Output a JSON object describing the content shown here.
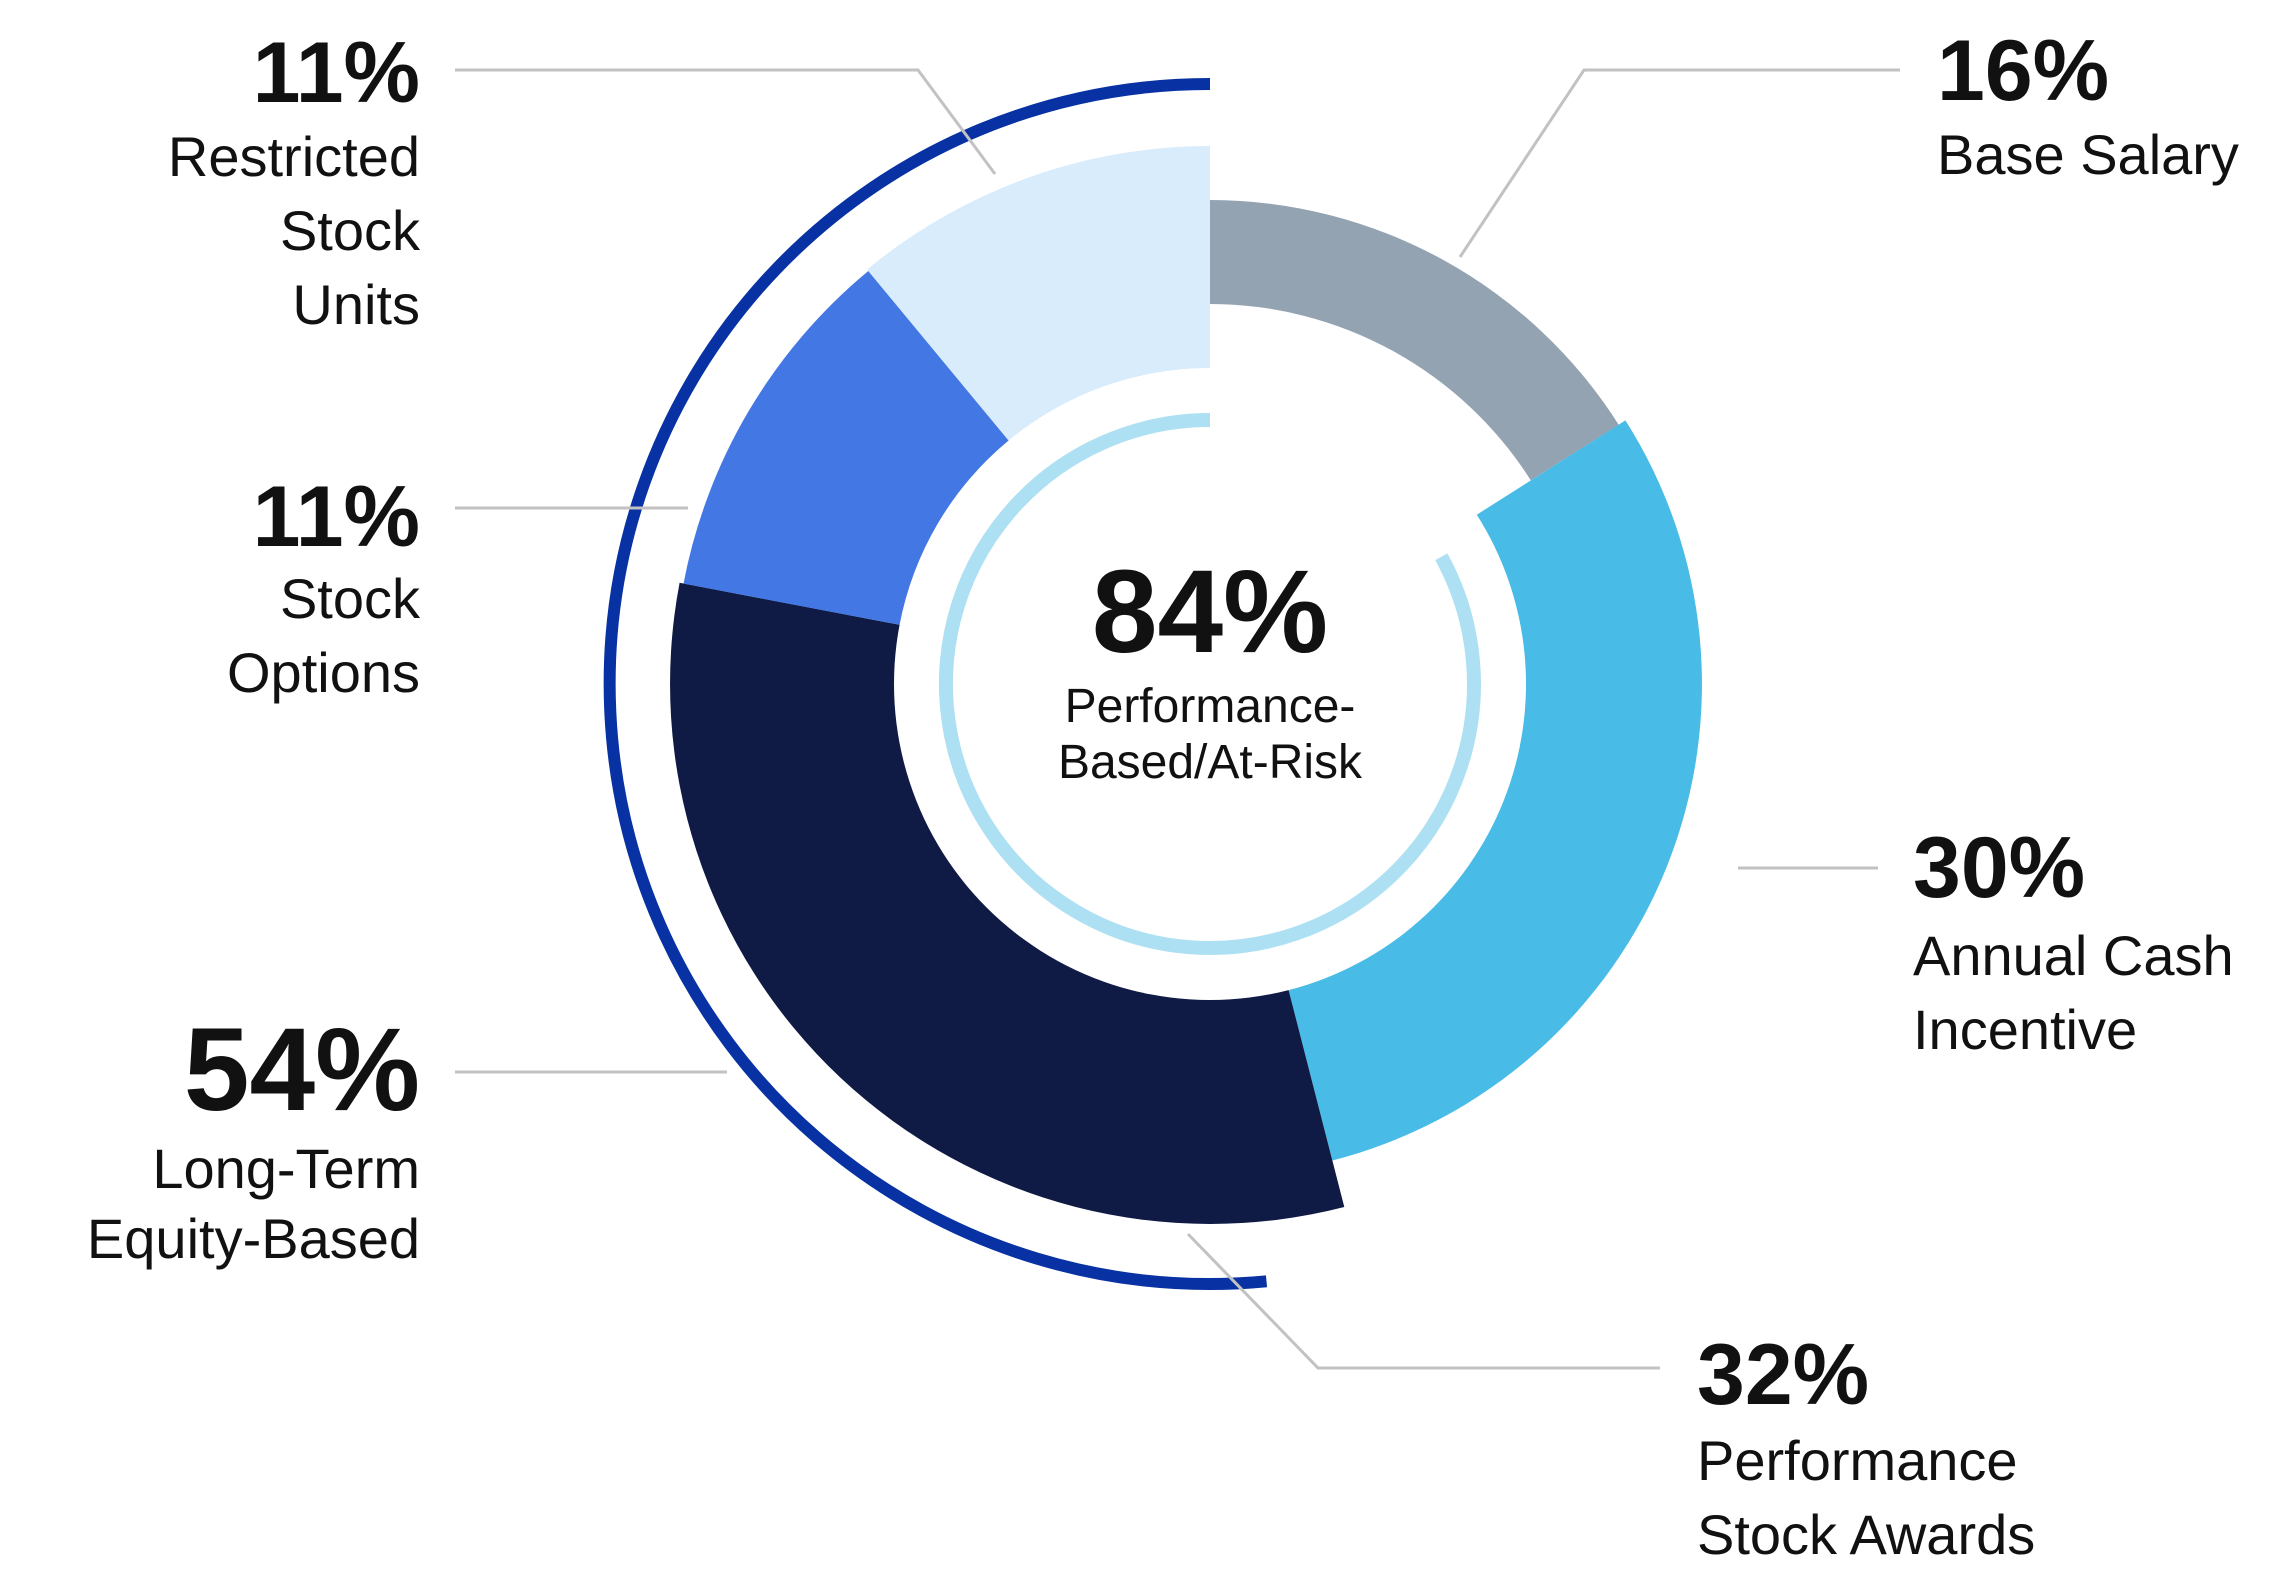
{
  "chart_data": {
    "type": "pie",
    "variant": "donut",
    "slices": [
      {
        "pct": "16%",
        "label_lines": [
          "Base Salary"
        ],
        "value": 16,
        "color": "#94a3b2"
      },
      {
        "pct": "30%",
        "label_lines": [
          "Annual Cash",
          "Incentive"
        ],
        "value": 30,
        "color": "#48bbe6"
      },
      {
        "pct": "32%",
        "label_lines": [
          "Performance",
          "Stock Awards"
        ],
        "value": 32,
        "color": "#0f1a45"
      },
      {
        "pct": "11%",
        "label_lines": [
          "Stock",
          "Options"
        ],
        "value": 11,
        "color": "#4377e3"
      },
      {
        "pct": "11%",
        "label_lines": [
          "Restricted",
          "Stock",
          "Units"
        ],
        "value": 11,
        "color": "#d9ecfc"
      }
    ],
    "group": {
      "pct": "54%",
      "label_lines": [
        "Long-Term",
        "Equity-Based"
      ],
      "color": "#0832a3"
    },
    "center": {
      "pct": "84%",
      "label_lines": [
        "Performance-",
        "Based/At-Risk"
      ],
      "color": "#aee0f3"
    },
    "leader_line_color": "#c2c2c2",
    "text_color": "#111111"
  }
}
